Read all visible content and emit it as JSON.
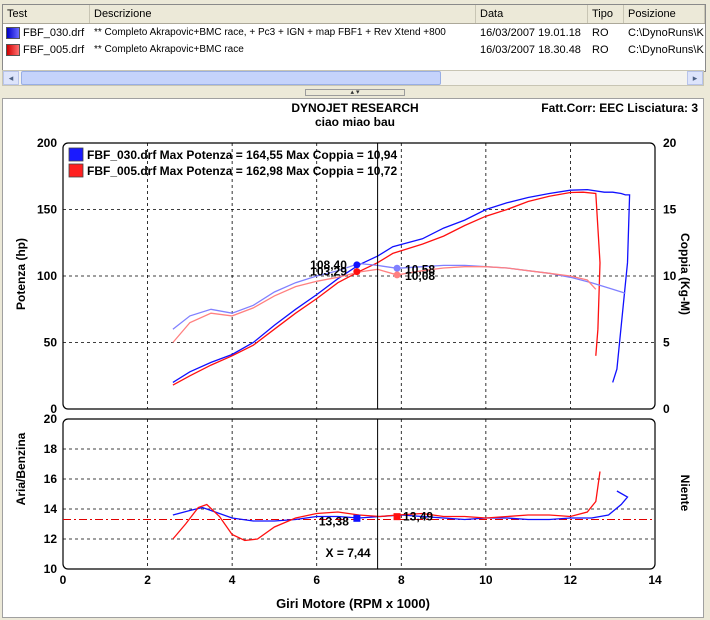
{
  "table": {
    "columns": [
      "Test",
      "Descrizione",
      "Data",
      "Tipo",
      "Posizione"
    ],
    "rows": [
      {
        "test": "FBF_030.drf",
        "descrizione": "** Completo Akrapovic+BMC race, + Pc3 + IGN + map FBF1 + Rev Xtend +800",
        "data": "16/03/2007 19.01.18",
        "tipo": "RO",
        "posizione": "C:\\DynoRuns\\K",
        "color": "#1a1aff"
      },
      {
        "test": "FBF_005.drf",
        "descrizione": "** Completo Akrapovic+BMC race",
        "data": "16/03/2007 18.30.48",
        "tipo": "RO",
        "posizione": "C:\\DynoRuns\\K",
        "color": "#ff2020"
      }
    ]
  },
  "scrollbar": {
    "left_arrow": "◂",
    "right_arrow": "▸"
  },
  "splitter": {
    "arrows": "▴ ▾"
  },
  "header": {
    "title": "DYNOJET RESEARCH",
    "subtitle": "ciao miao bau",
    "right": "Fatt.Corr: EEC  Lisciatura: 3"
  },
  "chart_data": {
    "type": "line",
    "x_label": "Giri Motore (RPM x 1000)",
    "x_range": [
      0,
      14
    ],
    "x_ticks": [
      0,
      2,
      4,
      6,
      8,
      10,
      12,
      14
    ],
    "cursor_x": 7.44,
    "cursor_label": "X = 7,44",
    "top_panel": {
      "y_left_label": "Potenza (hp)",
      "y_left_range": [
        0,
        200
      ],
      "y_left_ticks": [
        0,
        50,
        100,
        150,
        200
      ],
      "y_right_label": "Coppia (Kg-M)",
      "y_right_range": [
        0,
        20
      ],
      "y_right_ticks": [
        0,
        5,
        10,
        15,
        20
      ],
      "legend": [
        {
          "text": "FBF_030.drf Max Potenza = 164,55 Max Coppia = 10,94",
          "color": "#1a1aff"
        },
        {
          "text": "FBF_005.drf Max Potenza = 162,98 Max Coppia = 10,72",
          "color": "#ff2020"
        }
      ],
      "series": [
        {
          "name": "FBF_030.drf",
          "quantity": "power",
          "color": "#1010ff",
          "x": [
            2.6,
            3.0,
            3.5,
            4.0,
            4.5,
            5.0,
            5.5,
            6.0,
            6.5,
            7.0,
            7.44,
            7.8,
            8.5,
            9.0,
            9.5,
            10.0,
            10.5,
            11.0,
            11.5,
            12.0,
            12.4,
            12.8,
            13.0,
            13.2,
            13.3,
            13.4,
            13.35,
            13.1,
            13.0
          ],
          "y": [
            20,
            28,
            35,
            41,
            50,
            63,
            75,
            86,
            98,
            108.4,
            115,
            122,
            128,
            136,
            142,
            150,
            155,
            159,
            162,
            164.5,
            165,
            163,
            163,
            162,
            161,
            161,
            110,
            30,
            20
          ]
        },
        {
          "name": "FBF_005.drf",
          "quantity": "power",
          "color": "#ff1010",
          "x": [
            2.6,
            3.0,
            3.5,
            4.0,
            4.5,
            5.0,
            5.5,
            6.0,
            6.5,
            7.0,
            7.44,
            7.8,
            8.5,
            9.0,
            9.5,
            10.0,
            10.5,
            11.0,
            11.5,
            12.0,
            12.3,
            12.6,
            12.7,
            12.65,
            12.6
          ],
          "y": [
            18,
            25,
            33,
            40,
            48,
            60,
            72,
            83,
            95,
            103.3,
            110,
            117,
            124,
            130,
            138,
            145,
            150,
            156,
            160,
            162.8,
            163,
            162,
            110,
            60,
            40
          ]
        },
        {
          "name": "FBF_030.drf",
          "quantity": "torque",
          "color": "#8080ff",
          "x": [
            2.6,
            3.0,
            3.5,
            4.0,
            4.5,
            5.0,
            5.5,
            6.0,
            6.5,
            7.0,
            7.44,
            7.9,
            8.5,
            9.0,
            9.5,
            10.0,
            10.5,
            11.0,
            11.5,
            12.0,
            12.5,
            13.0,
            13.3
          ],
          "y": [
            6.0,
            7.0,
            7.5,
            7.2,
            7.8,
            8.8,
            9.5,
            10.0,
            10.4,
            10.94,
            10.8,
            10.58,
            10.7,
            10.8,
            10.8,
            10.7,
            10.6,
            10.4,
            10.2,
            9.9,
            9.5,
            9.0,
            8.7
          ]
        },
        {
          "name": "FBF_005.drf",
          "quantity": "torque",
          "color": "#ff8080",
          "x": [
            2.6,
            3.0,
            3.5,
            4.0,
            4.5,
            5.0,
            5.5,
            6.0,
            6.5,
            7.0,
            7.44,
            7.9,
            8.5,
            9.0,
            9.5,
            10.0,
            10.5,
            11.0,
            11.5,
            12.0,
            12.4,
            12.6
          ],
          "y": [
            5.0,
            6.5,
            7.2,
            7.0,
            7.6,
            8.5,
            9.2,
            9.6,
            9.9,
            10.3,
            10.5,
            10.08,
            10.4,
            10.6,
            10.7,
            10.7,
            10.6,
            10.4,
            10.2,
            10.0,
            9.7,
            9.0
          ]
        }
      ],
      "markers": [
        {
          "x": 6.95,
          "axis": "left",
          "y": 108.4,
          "label": "108,40",
          "color": "#1010ff",
          "side": "left"
        },
        {
          "x": 6.95,
          "axis": "left",
          "y": 103.29,
          "label": "103,29",
          "color": "#ff1010",
          "side": "left"
        },
        {
          "x": 7.9,
          "axis": "right",
          "y": 10.58,
          "label": "10,58",
          "color": "#8080ff",
          "side": "right"
        },
        {
          "x": 7.9,
          "axis": "right",
          "y": 10.08,
          "label": "10,08",
          "color": "#ff8080",
          "side": "right"
        }
      ]
    },
    "bottom_panel": {
      "y_left_label": "Aria/Benzina",
      "y_left_range": [
        10,
        20
      ],
      "y_left_ticks": [
        10,
        12,
        14,
        16,
        18,
        20
      ],
      "y_right_label": "Niente",
      "reference_y": 13.3,
      "series": [
        {
          "name": "FBF_030.drf",
          "quantity": "afr",
          "color": "#1010ff",
          "x": [
            2.6,
            3.0,
            3.3,
            3.6,
            4.0,
            4.5,
            5.0,
            5.5,
            6.0,
            6.5,
            7.0,
            7.5,
            8.0,
            8.5,
            9.0,
            9.5,
            10.0,
            10.5,
            11.0,
            11.5,
            12.0,
            12.5,
            12.9,
            13.2,
            13.35,
            13.1
          ],
          "y": [
            13.6,
            13.9,
            14.1,
            13.8,
            13.4,
            13.2,
            13.2,
            13.3,
            13.5,
            13.5,
            13.4,
            13.5,
            13.6,
            13.5,
            13.4,
            13.3,
            13.4,
            13.4,
            13.3,
            13.3,
            13.4,
            13.4,
            13.6,
            14.3,
            14.8,
            15.2
          ]
        },
        {
          "name": "FBF_005.drf",
          "quantity": "afr",
          "color": "#ff1010",
          "x": [
            2.6,
            2.9,
            3.2,
            3.4,
            3.7,
            4.0,
            4.3,
            4.6,
            5.0,
            5.5,
            6.0,
            6.5,
            7.0,
            7.5,
            7.9,
            8.5,
            9.0,
            9.5,
            10.0,
            10.5,
            11.0,
            11.5,
            12.0,
            12.4,
            12.6,
            12.7
          ],
          "y": [
            12.0,
            13.0,
            14.1,
            14.3,
            13.5,
            12.3,
            11.9,
            12.0,
            12.8,
            13.4,
            13.7,
            13.8,
            13.6,
            13.5,
            13.6,
            13.7,
            13.5,
            13.5,
            13.4,
            13.5,
            13.6,
            13.6,
            13.5,
            13.8,
            14.5,
            16.5
          ]
        }
      ],
      "markers": [
        {
          "x": 6.95,
          "y": 13.38,
          "label": "13,38",
          "color": "#1010ff",
          "side": "left"
        },
        {
          "x": 7.9,
          "y": 13.49,
          "label": "13,49",
          "color": "#ff1010",
          "side": "right"
        }
      ]
    }
  }
}
